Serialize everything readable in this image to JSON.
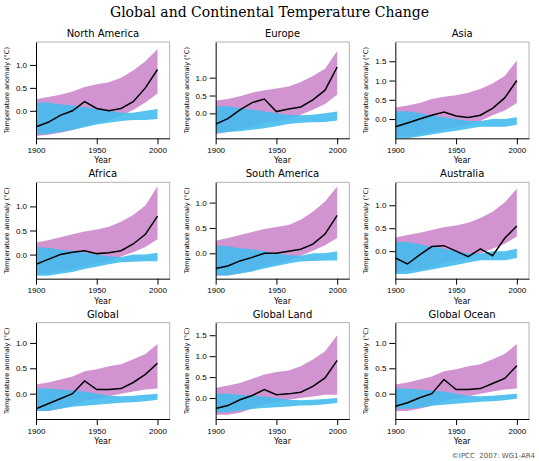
{
  "title": "Global and Continental Temperature Change",
  "annotations": [
    "©IPCC  2007: WG1-AR4"
  ],
  "chart_data": [
    {
      "type": "line",
      "title": "North America",
      "x_label": "Year",
      "y_label": "Temperature anomaly (°C)",
      "x": [
        1900,
        1910,
        1920,
        1930,
        1940,
        1950,
        1960,
        1970,
        1980,
        1990,
        2000
      ],
      "series": [
        {
          "type": "area",
          "color": "#cc88cc",
          "lower": [
            -0.55,
            -0.52,
            -0.48,
            -0.42,
            -0.32,
            -0.25,
            -0.2,
            -0.1,
            0.02,
            0.18,
            0.38
          ],
          "upper": [
            0.25,
            0.3,
            0.35,
            0.42,
            0.52,
            0.58,
            0.62,
            0.72,
            0.88,
            1.08,
            1.35
          ]
        },
        {
          "type": "area",
          "color": "#44bbee",
          "lower": [
            -0.52,
            -0.5,
            -0.46,
            -0.42,
            -0.36,
            -0.3,
            -0.26,
            -0.22,
            -0.2,
            -0.2,
            -0.18
          ],
          "upper": [
            0.18,
            0.18,
            0.14,
            0.12,
            0.08,
            0.04,
            0.0,
            -0.04,
            -0.04,
            0.0,
            0.04
          ]
        },
        {
          "type": "line",
          "color": "#000000",
          "values": [
            -0.35,
            -0.25,
            -0.1,
            0.0,
            0.2,
            0.05,
            0.0,
            0.05,
            0.2,
            0.5,
            0.9
          ]
        }
      ],
      "xlim": [
        1900,
        2010
      ],
      "xticks": [
        1900,
        1950,
        2000
      ],
      "ylim": [
        -0.6,
        1.5
      ],
      "yticks": [
        {
          "value": 0.0,
          "label": "0.0"
        },
        0.5,
        {
          "value": 1.0,
          "label": "1.0"
        }
      ],
      "grid": false
    },
    {
      "type": "line",
      "title": "Europe",
      "x_label": "Year",
      "y_label": "Temperature anomaly (°C)",
      "x": [
        1900,
        1910,
        1920,
        1930,
        1940,
        1950,
        1960,
        1970,
        1980,
        1990,
        2000
      ],
      "series": [
        {
          "type": "area",
          "color": "#cc88cc",
          "lower": [
            -0.58,
            -0.52,
            -0.46,
            -0.36,
            -0.26,
            -0.22,
            -0.16,
            -0.04,
            0.1,
            0.26,
            0.52
          ],
          "upper": [
            0.35,
            0.4,
            0.48,
            0.58,
            0.65,
            0.7,
            0.75,
            0.88,
            1.05,
            1.25,
            1.75
          ]
        },
        {
          "type": "area",
          "color": "#44bbee",
          "lower": [
            -0.56,
            -0.52,
            -0.5,
            -0.46,
            -0.42,
            -0.36,
            -0.3,
            -0.26,
            -0.25,
            -0.24,
            -0.2
          ],
          "upper": [
            0.2,
            0.2,
            0.15,
            0.1,
            0.06,
            0.0,
            -0.04,
            -0.05,
            -0.04,
            0.0,
            0.05
          ]
        },
        {
          "type": "line",
          "color": "#000000",
          "values": [
            -0.3,
            -0.15,
            0.1,
            0.3,
            0.4,
            0.05,
            0.12,
            0.18,
            0.38,
            0.65,
            1.3
          ]
        }
      ],
      "xlim": [
        1900,
        2010
      ],
      "xticks": [
        1900,
        1950,
        2000
      ],
      "ylim": [
        -0.7,
        2.0
      ],
      "yticks": [
        {
          "value": 0.0,
          "label": "0.0"
        },
        0.5,
        {
          "value": 1.0,
          "label": "1.0"
        }
      ],
      "grid": false
    },
    {
      "type": "line",
      "title": "Asia",
      "x_label": "Year",
      "y_label": "Temperature anomaly (°C)",
      "x": [
        1900,
        1910,
        1920,
        1930,
        1940,
        1950,
        1960,
        1970,
        1980,
        1990,
        2000
      ],
      "series": [
        {
          "type": "area",
          "color": "#cc88cc",
          "lower": [
            -0.46,
            -0.45,
            -0.4,
            -0.35,
            -0.26,
            -0.2,
            -0.15,
            -0.05,
            0.1,
            0.22,
            0.42
          ],
          "upper": [
            0.3,
            0.35,
            0.42,
            0.52,
            0.58,
            0.62,
            0.68,
            0.78,
            0.92,
            1.12,
            1.52
          ]
        },
        {
          "type": "area",
          "color": "#44bbee",
          "lower": [
            -0.5,
            -0.5,
            -0.45,
            -0.4,
            -0.35,
            -0.3,
            -0.25,
            -0.2,
            -0.2,
            -0.2,
            -0.15
          ],
          "upper": [
            0.2,
            0.2,
            0.15,
            0.1,
            0.05,
            0.0,
            -0.05,
            -0.05,
            0.0,
            0.0,
            0.05
          ]
        },
        {
          "type": "line",
          "color": "#000000",
          "values": [
            -0.2,
            -0.1,
            0.0,
            0.1,
            0.18,
            0.08,
            0.04,
            0.1,
            0.28,
            0.55,
            1.0
          ]
        }
      ],
      "xlim": [
        1900,
        2010
      ],
      "xticks": [
        1900,
        1950,
        2000
      ],
      "ylim": [
        -0.5,
        2.0
      ],
      "yticks": [
        {
          "value": 0.0,
          "label": "0.0"
        },
        0.5,
        {
          "value": 1.0,
          "label": "1.0"
        },
        1.5
      ],
      "grid": false
    },
    {
      "type": "line",
      "title": "Africa",
      "x_label": "Year",
      "y_label": "Temperature anomaly (°C)",
      "x": [
        1900,
        1910,
        1920,
        1930,
        1940,
        1950,
        1960,
        1970,
        1980,
        1990,
        2000
      ],
      "series": [
        {
          "type": "area",
          "color": "#cc88cc",
          "lower": [
            -0.4,
            -0.4,
            -0.35,
            -0.3,
            -0.24,
            -0.18,
            -0.14,
            -0.04,
            0.05,
            0.16,
            0.32
          ],
          "upper": [
            0.25,
            0.3,
            0.36,
            0.42,
            0.48,
            0.52,
            0.58,
            0.68,
            0.82,
            1.02,
            1.42
          ]
        },
        {
          "type": "area",
          "color": "#44bbee",
          "lower": [
            -0.44,
            -0.44,
            -0.4,
            -0.36,
            -0.3,
            -0.25,
            -0.2,
            -0.16,
            -0.15,
            -0.14,
            -0.14
          ],
          "upper": [
            0.15,
            0.14,
            0.1,
            0.08,
            0.04,
            0.0,
            -0.04,
            -0.05,
            0.0,
            0.0,
            0.04
          ]
        },
        {
          "type": "line",
          "color": "#000000",
          "values": [
            -0.2,
            -0.1,
            0.0,
            0.05,
            0.08,
            0.02,
            0.04,
            0.08,
            0.22,
            0.42,
            0.8
          ]
        }
      ],
      "xlim": [
        1900,
        2010
      ],
      "xticks": [
        1900,
        1950,
        2000
      ],
      "ylim": [
        -0.5,
        1.5
      ],
      "yticks": [
        {
          "value": 0.0,
          "label": "0.0"
        },
        0.5,
        {
          "value": 1.0,
          "label": "1.0"
        }
      ],
      "grid": false
    },
    {
      "type": "line",
      "title": "South America",
      "x_label": "Year",
      "y_label": "Temperature anomaly (°C)",
      "x": [
        1900,
        1910,
        1920,
        1930,
        1940,
        1950,
        1960,
        1970,
        1980,
        1990,
        2000
      ],
      "series": [
        {
          "type": "area",
          "color": "#cc88cc",
          "lower": [
            -0.44,
            -0.44,
            -0.4,
            -0.35,
            -0.26,
            -0.2,
            -0.15,
            -0.05,
            0.05,
            0.16,
            0.3
          ],
          "upper": [
            0.25,
            0.3,
            0.36,
            0.42,
            0.48,
            0.52,
            0.56,
            0.66,
            0.82,
            1.02,
            1.32
          ]
        },
        {
          "type": "area",
          "color": "#44bbee",
          "lower": [
            -0.44,
            -0.44,
            -0.4,
            -0.36,
            -0.3,
            -0.25,
            -0.2,
            -0.16,
            -0.15,
            -0.14,
            -0.14
          ],
          "upper": [
            0.15,
            0.14,
            0.1,
            0.08,
            0.04,
            0.0,
            -0.04,
            -0.05,
            0.0,
            0.0,
            0.04
          ]
        },
        {
          "type": "line",
          "color": "#000000",
          "values": [
            -0.3,
            -0.25,
            -0.15,
            -0.08,
            0.0,
            0.0,
            0.04,
            0.08,
            0.18,
            0.38,
            0.75
          ]
        }
      ],
      "xlim": [
        1900,
        2010
      ],
      "xticks": [
        1900,
        1950,
        2000
      ],
      "ylim": [
        -0.5,
        1.4
      ],
      "yticks": [
        {
          "value": 0.0,
          "label": "0.0"
        },
        0.5,
        {
          "value": 1.0,
          "label": "1.0"
        }
      ],
      "grid": false
    },
    {
      "type": "line",
      "title": "Australia",
      "x_label": "Year",
      "y_label": "Temperature anomaly (°C)",
      "x": [
        1900,
        1910,
        1920,
        1930,
        1940,
        1950,
        1960,
        1970,
        1980,
        1990,
        2000
      ],
      "series": [
        {
          "type": "area",
          "color": "#cc88cc",
          "lower": [
            -0.45,
            -0.44,
            -0.4,
            -0.35,
            -0.26,
            -0.2,
            -0.15,
            -0.05,
            0.05,
            0.16,
            0.32
          ],
          "upper": [
            0.3,
            0.35,
            0.4,
            0.46,
            0.52,
            0.56,
            0.62,
            0.72,
            0.86,
            1.06,
            1.36
          ]
        },
        {
          "type": "area",
          "color": "#44bbee",
          "lower": [
            -0.5,
            -0.5,
            -0.45,
            -0.4,
            -0.35,
            -0.3,
            -0.25,
            -0.2,
            -0.2,
            -0.2,
            -0.15
          ],
          "upper": [
            0.2,
            0.2,
            0.15,
            0.1,
            0.05,
            0.0,
            -0.05,
            -0.05,
            0.0,
            0.0,
            0.05
          ]
        },
        {
          "type": "line",
          "color": "#000000",
          "values": [
            -0.15,
            -0.28,
            -0.08,
            0.1,
            0.12,
            0.0,
            -0.12,
            0.05,
            -0.1,
            0.28,
            0.55
          ]
        }
      ],
      "xlim": [
        1900,
        2010
      ],
      "xticks": [
        1900,
        1950,
        2000
      ],
      "ylim": [
        -0.6,
        1.5
      ],
      "yticks": [
        {
          "value": 0.0,
          "label": "0.0"
        },
        0.5,
        {
          "value": 1.0,
          "label": "1.0"
        }
      ],
      "grid": false
    },
    {
      "type": "line",
      "title": "Global",
      "x_label": "Year",
      "y_label": "Temperature anomaly (°C)",
      "x": [
        1900,
        1910,
        1920,
        1930,
        1940,
        1950,
        1960,
        1970,
        1980,
        1990,
        2000
      ],
      "series": [
        {
          "type": "area",
          "color": "#cc88cc",
          "lower": [
            -0.34,
            -0.34,
            -0.3,
            -0.24,
            -0.14,
            -0.1,
            -0.05,
            0.0,
            0.04,
            0.08,
            0.1
          ],
          "upper": [
            0.18,
            0.22,
            0.28,
            0.34,
            0.44,
            0.48,
            0.54,
            0.58,
            0.68,
            0.78,
            0.98
          ]
        },
        {
          "type": "area",
          "color": "#44bbee",
          "lower": [
            -0.34,
            -0.34,
            -0.3,
            -0.26,
            -0.24,
            -0.22,
            -0.2,
            -0.18,
            -0.17,
            -0.15,
            -0.12
          ],
          "upper": [
            0.1,
            0.1,
            0.08,
            0.06,
            0.04,
            0.0,
            -0.04,
            -0.05,
            -0.04,
            -0.02,
            0.0
          ]
        },
        {
          "type": "line",
          "color": "#000000",
          "values": [
            -0.3,
            -0.2,
            -0.1,
            0.0,
            0.25,
            0.08,
            0.08,
            0.1,
            0.22,
            0.38,
            0.6
          ]
        }
      ],
      "xlim": [
        1900,
        2010
      ],
      "xticks": [
        1900,
        1950,
        2000
      ],
      "ylim": [
        -0.5,
        1.4
      ],
      "yticks": [
        {
          "value": 0.0,
          "label": "0.0"
        },
        0.5,
        {
          "value": 1.0,
          "label": "1.0"
        }
      ],
      "grid": false
    },
    {
      "type": "line",
      "title": "Global Land",
      "x_label": "Year",
      "y_label": "Temperature anomaly (°C)",
      "x": [
        1900,
        1910,
        1920,
        1930,
        1940,
        1950,
        1960,
        1970,
        1980,
        1990,
        2000
      ],
      "series": [
        {
          "type": "area",
          "color": "#cc88cc",
          "lower": [
            -0.4,
            -0.4,
            -0.35,
            -0.25,
            -0.14,
            -0.1,
            -0.04,
            0.0,
            0.04,
            0.08,
            0.08
          ],
          "upper": [
            0.24,
            0.3,
            0.36,
            0.46,
            0.56,
            0.62,
            0.66,
            0.76,
            0.92,
            1.12,
            1.5
          ]
        },
        {
          "type": "area",
          "color": "#44bbee",
          "lower": [
            -0.34,
            -0.34,
            -0.3,
            -0.26,
            -0.24,
            -0.22,
            -0.2,
            -0.18,
            -0.17,
            -0.15,
            -0.12
          ],
          "upper": [
            0.1,
            0.1,
            0.08,
            0.06,
            0.04,
            0.0,
            -0.04,
            -0.05,
            -0.04,
            -0.02,
            0.0
          ]
        },
        {
          "type": "line",
          "color": "#000000",
          "values": [
            -0.25,
            -0.18,
            -0.04,
            0.06,
            0.2,
            0.08,
            0.1,
            0.14,
            0.28,
            0.48,
            0.9
          ]
        }
      ],
      "xlim": [
        1900,
        2010
      ],
      "xticks": [
        1900,
        1950,
        2000
      ],
      "ylim": [
        -0.5,
        1.8
      ],
      "yticks": [
        {
          "value": 0.0,
          "label": "0.0"
        },
        0.5,
        {
          "value": 1.0,
          "label": "1.0"
        },
        1.5
      ],
      "grid": false
    },
    {
      "type": "line",
      "title": "Global Ocean",
      "x_label": "Year",
      "y_label": "Temperature anomaly (°C)",
      "x": [
        1900,
        1910,
        1920,
        1930,
        1940,
        1950,
        1960,
        1970,
        1980,
        1990,
        2000
      ],
      "series": [
        {
          "type": "area",
          "color": "#cc88cc",
          "lower": [
            -0.34,
            -0.34,
            -0.3,
            -0.24,
            -0.14,
            -0.1,
            -0.05,
            0.0,
            0.04,
            0.08,
            0.1
          ],
          "upper": [
            0.18,
            0.22,
            0.28,
            0.34,
            0.44,
            0.48,
            0.54,
            0.58,
            0.68,
            0.78,
            0.98
          ]
        },
        {
          "type": "area",
          "color": "#44bbee",
          "lower": [
            -0.3,
            -0.3,
            -0.28,
            -0.24,
            -0.22,
            -0.2,
            -0.18,
            -0.16,
            -0.15,
            -0.13,
            -0.1
          ],
          "upper": [
            0.1,
            0.1,
            0.08,
            0.06,
            0.04,
            0.0,
            -0.04,
            -0.05,
            -0.04,
            -0.02,
            0.0
          ]
        },
        {
          "type": "line",
          "color": "#000000",
          "values": [
            -0.25,
            -0.18,
            -0.08,
            0.0,
            0.28,
            0.08,
            0.08,
            0.1,
            0.2,
            0.3,
            0.55
          ]
        }
      ],
      "xlim": [
        1900,
        2010
      ],
      "xticks": [
        1900,
        1950,
        2000
      ],
      "ylim": [
        -0.5,
        1.4
      ],
      "yticks": [
        {
          "value": 0.0,
          "label": "0.0"
        },
        0.5,
        {
          "value": 1.0,
          "label": "1.0"
        }
      ],
      "grid": false
    }
  ]
}
